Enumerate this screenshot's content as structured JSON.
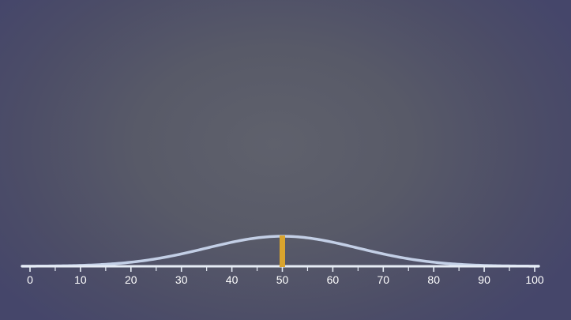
{
  "chart_data": {
    "type": "line",
    "title": "",
    "xlabel": "",
    "ylabel": "",
    "xlim": [
      0,
      100
    ],
    "x_ticks": [
      0,
      10,
      20,
      30,
      40,
      50,
      60,
      70,
      80,
      90,
      100
    ],
    "minor_tick_step": 5,
    "distribution": {
      "shape": "normal",
      "mean": 50,
      "sd": 15
    },
    "marker": {
      "x": 50
    },
    "grid": false,
    "legend": "none"
  },
  "colors": {
    "curve": "#c3cfe6",
    "axis": "#e6ecf5",
    "marker": "#d9a42e",
    "tick_label": "#ffffff"
  }
}
